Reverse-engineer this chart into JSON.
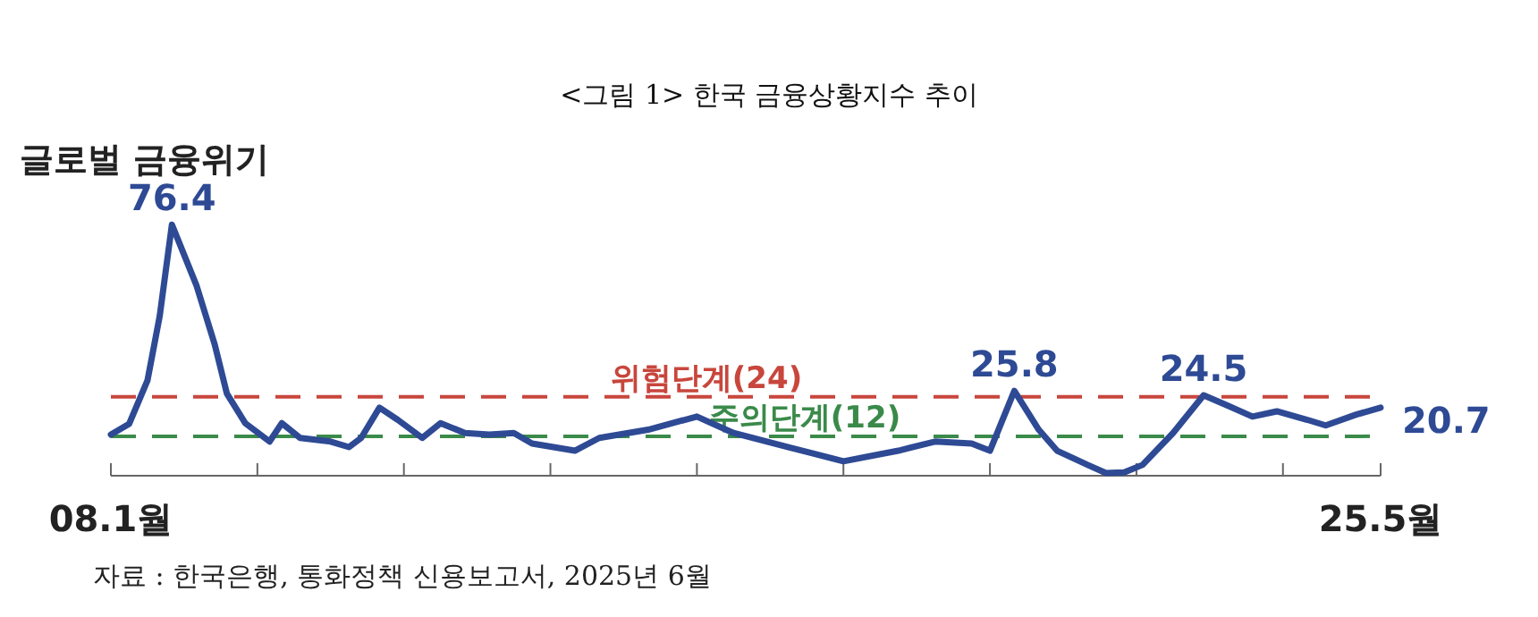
{
  "chart_data": {
    "type": "line",
    "title": "<그림 1> 한국 금융상황지수 추이",
    "x": [
      "2008-01",
      "2008-04",
      "2008-07",
      "2008-09",
      "2008-11",
      "2009-03",
      "2009-06",
      "2009-08",
      "2009-11",
      "2010-03",
      "2010-05",
      "2010-08",
      "2011-01",
      "2011-04",
      "2011-06",
      "2011-09",
      "2011-12",
      "2012-04",
      "2012-07",
      "2012-11",
      "2013-03",
      "2013-07",
      "2013-10",
      "2014-05",
      "2014-09",
      "2015-05",
      "2016-01",
      "2016-07",
      "2017-04",
      "2018-01",
      "2018-10",
      "2019-04",
      "2019-10",
      "2020-01",
      "2020-05",
      "2020-09",
      "2020-12",
      "2021-05",
      "2021-08",
      "2021-11",
      "2022-02",
      "2022-07",
      "2022-12",
      "2023-04",
      "2023-08",
      "2023-12",
      "2024-05",
      "2024-08",
      "2025-01",
      "2025-05"
    ],
    "series": [
      {
        "color": "#2e4a94",
        "values": [
          12.5,
          15.8,
          29,
          48.6,
          76.4,
          58,
          40,
          25,
          16,
          10.4,
          16,
          11.5,
          10.4,
          8.7,
          11.5,
          20.7,
          17,
          11.5,
          16,
          13,
          12.5,
          13,
          9.8,
          7.6,
          11.5,
          14,
          18,
          13,
          8.7,
          4.4,
          7.6,
          10.4,
          9.8,
          7.6,
          25.8,
          14,
          7.6,
          3.3,
          0.8,
          1,
          3.3,
          13,
          24.5,
          21.3,
          18,
          19.6,
          17,
          15.3,
          18.6,
          20.7
        ],
        "value_labels": [
          null,
          null,
          null,
          null,
          "76.4",
          null,
          null,
          null,
          null,
          null,
          null,
          null,
          null,
          null,
          null,
          null,
          null,
          null,
          null,
          null,
          null,
          null,
          null,
          null,
          null,
          null,
          null,
          null,
          null,
          null,
          null,
          null,
          null,
          null,
          "25.8",
          null,
          null,
          null,
          null,
          null,
          null,
          null,
          "24.5",
          null,
          null,
          null,
          null,
          null,
          null,
          "20.7"
        ]
      }
    ],
    "xlim": [
      "2008-01",
      "2025-05"
    ],
    "xticks": [
      {
        "value": "2008-01",
        "label": "08.1월"
      },
      {
        "value": "2010-01",
        "label": null
      },
      {
        "value": "2012-01",
        "label": null
      },
      {
        "value": "2014-01",
        "label": null
      },
      {
        "value": "2016-01",
        "label": null
      },
      {
        "value": "2018-01",
        "label": null
      },
      {
        "value": "2020-01",
        "label": null
      },
      {
        "value": "2022-01",
        "label": null
      },
      {
        "value": "2024-01",
        "label": null
      },
      {
        "value": "2025-05",
        "label": "25.5월"
      }
    ],
    "tick_labels": "x",
    "ref_lines": [
      {
        "axis": "y",
        "value": 24,
        "label": "위험단계(24)",
        "color": "#c8463c",
        "line_style": "dashed"
      },
      {
        "axis": "y",
        "value": 12,
        "label": "주의단계(12)",
        "color": "#3a8a4a",
        "line_style": "dashed"
      }
    ],
    "annotations": [
      {
        "text": "글로벌 금융위기",
        "x": "2008-11",
        "y": 76.4
      },
      "자료 : 한국은행, 통화정책 신용보고서, 2025년 6월"
    ],
    "line_style": "solid",
    "marker": "none"
  }
}
